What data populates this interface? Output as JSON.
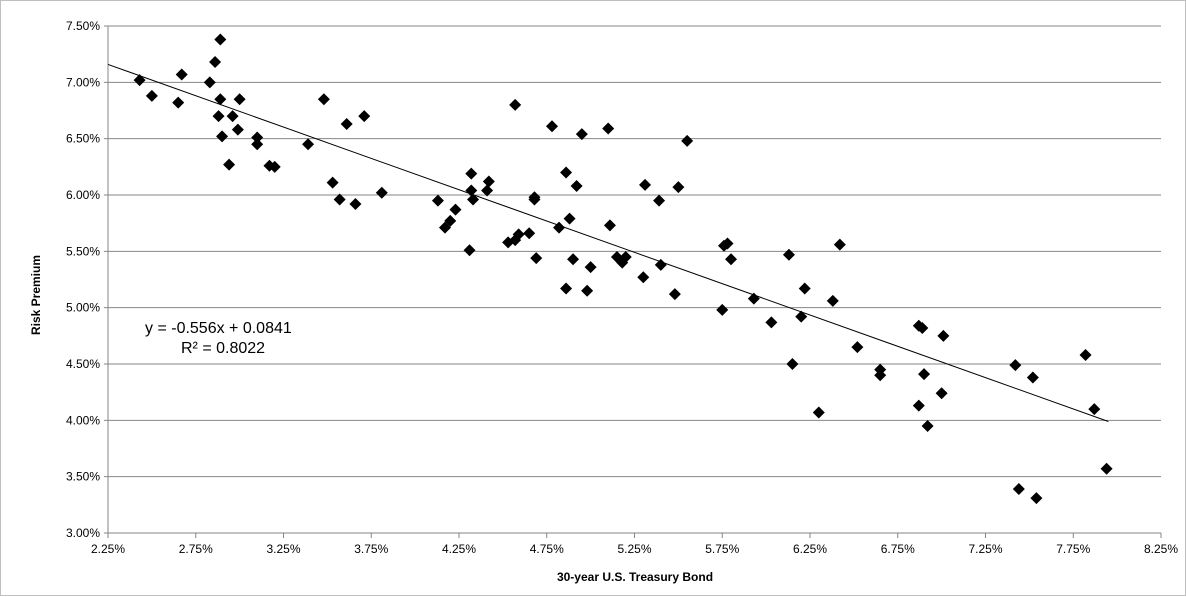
{
  "chart_data": {
    "type": "scatter",
    "title": "",
    "xlabel": "30-year U.S. Treasury Bond",
    "ylabel": "Risk Premium",
    "xlim": [
      0.0225,
      0.0825
    ],
    "ylim": [
      0.03,
      0.075
    ],
    "x_ticks": [
      "2.25%",
      "2.75%",
      "3.25%",
      "3.75%",
      "4.25%",
      "4.75%",
      "5.25%",
      "5.75%",
      "6.25%",
      "6.75%",
      "7.25%",
      "7.75%",
      "8.25%"
    ],
    "y_ticks": [
      "3.00%",
      "3.50%",
      "4.00%",
      "4.50%",
      "5.00%",
      "5.50%",
      "6.00%",
      "6.50%",
      "7.00%",
      "7.50%"
    ],
    "grid": "horizontal",
    "marker": "diamond",
    "marker_color": "#000000",
    "trendline": {
      "slope": -0.556,
      "intercept": 0.0841,
      "x_range": [
        0.0225,
        0.0795
      ]
    },
    "annotations": {
      "equation": "y = -0.556x + 0.0841",
      "r_squared": "R² = 0.8022"
    },
    "points": [
      [
        0.0243,
        0.0702
      ],
      [
        0.025,
        0.0688
      ],
      [
        0.0265,
        0.0682
      ],
      [
        0.0267,
        0.0707
      ],
      [
        0.0283,
        0.07
      ],
      [
        0.0286,
        0.0718
      ],
      [
        0.0289,
        0.0738
      ],
      [
        0.0289,
        0.0685
      ],
      [
        0.0288,
        0.067
      ],
      [
        0.029,
        0.0652
      ],
      [
        0.0294,
        0.0627
      ],
      [
        0.0296,
        0.067
      ],
      [
        0.03,
        0.0685
      ],
      [
        0.0299,
        0.0658
      ],
      [
        0.031,
        0.0651
      ],
      [
        0.031,
        0.0645
      ],
      [
        0.0317,
        0.0626
      ],
      [
        0.032,
        0.0625
      ],
      [
        0.0339,
        0.0645
      ],
      [
        0.0348,
        0.0685
      ],
      [
        0.0353,
        0.0611
      ],
      [
        0.0357,
        0.0596
      ],
      [
        0.0361,
        0.0663
      ],
      [
        0.0366,
        0.0592
      ],
      [
        0.0371,
        0.067
      ],
      [
        0.0381,
        0.0602
      ],
      [
        0.0413,
        0.0595
      ],
      [
        0.0417,
        0.0571
      ],
      [
        0.042,
        0.0577
      ],
      [
        0.0423,
        0.0587
      ],
      [
        0.0432,
        0.0619
      ],
      [
        0.0432,
        0.0604
      ],
      [
        0.0433,
        0.0596
      ],
      [
        0.0431,
        0.0551
      ],
      [
        0.0442,
        0.0612
      ],
      [
        0.0441,
        0.0604
      ],
      [
        0.0453,
        0.0558
      ],
      [
        0.0457,
        0.068
      ],
      [
        0.0457,
        0.056
      ],
      [
        0.0459,
        0.0565
      ],
      [
        0.0465,
        0.0566
      ],
      [
        0.0468,
        0.0598
      ],
      [
        0.0468,
        0.0596
      ],
      [
        0.0469,
        0.0544
      ],
      [
        0.0478,
        0.0661
      ],
      [
        0.0482,
        0.0571
      ],
      [
        0.0486,
        0.062
      ],
      [
        0.0486,
        0.0517
      ],
      [
        0.0488,
        0.0579
      ],
      [
        0.049,
        0.0543
      ],
      [
        0.0492,
        0.0608
      ],
      [
        0.0495,
        0.0654
      ],
      [
        0.0498,
        0.0515
      ],
      [
        0.05,
        0.0536
      ],
      [
        0.051,
        0.0659
      ],
      [
        0.0511,
        0.0573
      ],
      [
        0.0515,
        0.0545
      ],
      [
        0.0518,
        0.054
      ],
      [
        0.052,
        0.0545
      ],
      [
        0.053,
        0.0527
      ],
      [
        0.0531,
        0.0609
      ],
      [
        0.0539,
        0.0595
      ],
      [
        0.054,
        0.0538
      ],
      [
        0.0548,
        0.0512
      ],
      [
        0.055,
        0.0607
      ],
      [
        0.0555,
        0.0648
      ],
      [
        0.0575,
        0.0498
      ],
      [
        0.0576,
        0.0555
      ],
      [
        0.0578,
        0.0557
      ],
      [
        0.058,
        0.0543
      ],
      [
        0.0593,
        0.0508
      ],
      [
        0.0603,
        0.0487
      ],
      [
        0.0613,
        0.0547
      ],
      [
        0.0615,
        0.045
      ],
      [
        0.062,
        0.0492
      ],
      [
        0.0622,
        0.0517
      ],
      [
        0.063,
        0.0407
      ],
      [
        0.0638,
        0.0506
      ],
      [
        0.0642,
        0.0556
      ],
      [
        0.0652,
        0.0465
      ],
      [
        0.0665,
        0.0445
      ],
      [
        0.0665,
        0.044
      ],
      [
        0.0687,
        0.0484
      ],
      [
        0.0689,
        0.0482
      ],
      [
        0.0687,
        0.0413
      ],
      [
        0.069,
        0.0441
      ],
      [
        0.0692,
        0.0395
      ],
      [
        0.0701,
        0.0475
      ],
      [
        0.07,
        0.0424
      ],
      [
        0.0742,
        0.0449
      ],
      [
        0.0744,
        0.0339
      ],
      [
        0.0752,
        0.0438
      ],
      [
        0.0754,
        0.0331
      ],
      [
        0.0782,
        0.0458
      ],
      [
        0.0787,
        0.041
      ],
      [
        0.0794,
        0.0357
      ]
    ]
  }
}
